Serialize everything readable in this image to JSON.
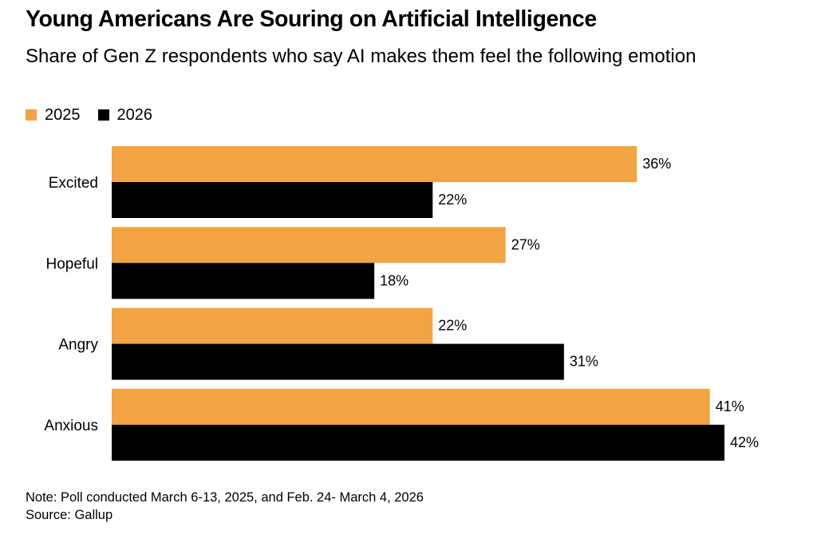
{
  "header": {
    "title": "Young Americans Are Souring on Artificial Intelligence",
    "subtitle": "Share of Gen Z respondents who say AI makes them feel the following emotion"
  },
  "legend": {
    "items": [
      {
        "label": "2025",
        "color": "#f2a444"
      },
      {
        "label": "2026",
        "color": "#000000"
      }
    ]
  },
  "chart_data": {
    "type": "bar",
    "orientation": "horizontal",
    "categories": [
      "Excited",
      "Hopeful",
      "Angry",
      "Anxious"
    ],
    "series": [
      {
        "name": "2025",
        "color": "#f2a444",
        "values": [
          36,
          27,
          22,
          41
        ],
        "labels": [
          "36%",
          "27%",
          "22%",
          "41%"
        ]
      },
      {
        "name": "2026",
        "color": "#000000",
        "values": [
          22,
          18,
          31,
          42
        ],
        "labels": [
          "22%",
          "18%",
          "31%",
          "42%"
        ]
      }
    ],
    "xlim": [
      0,
      42
    ],
    "grid": false,
    "legend_position": "top-left"
  },
  "footer": {
    "note": "Note: Poll conducted March 6-13, 2025, and Feb. 24- March 4, 2026",
    "source": "Source: Gallup"
  }
}
